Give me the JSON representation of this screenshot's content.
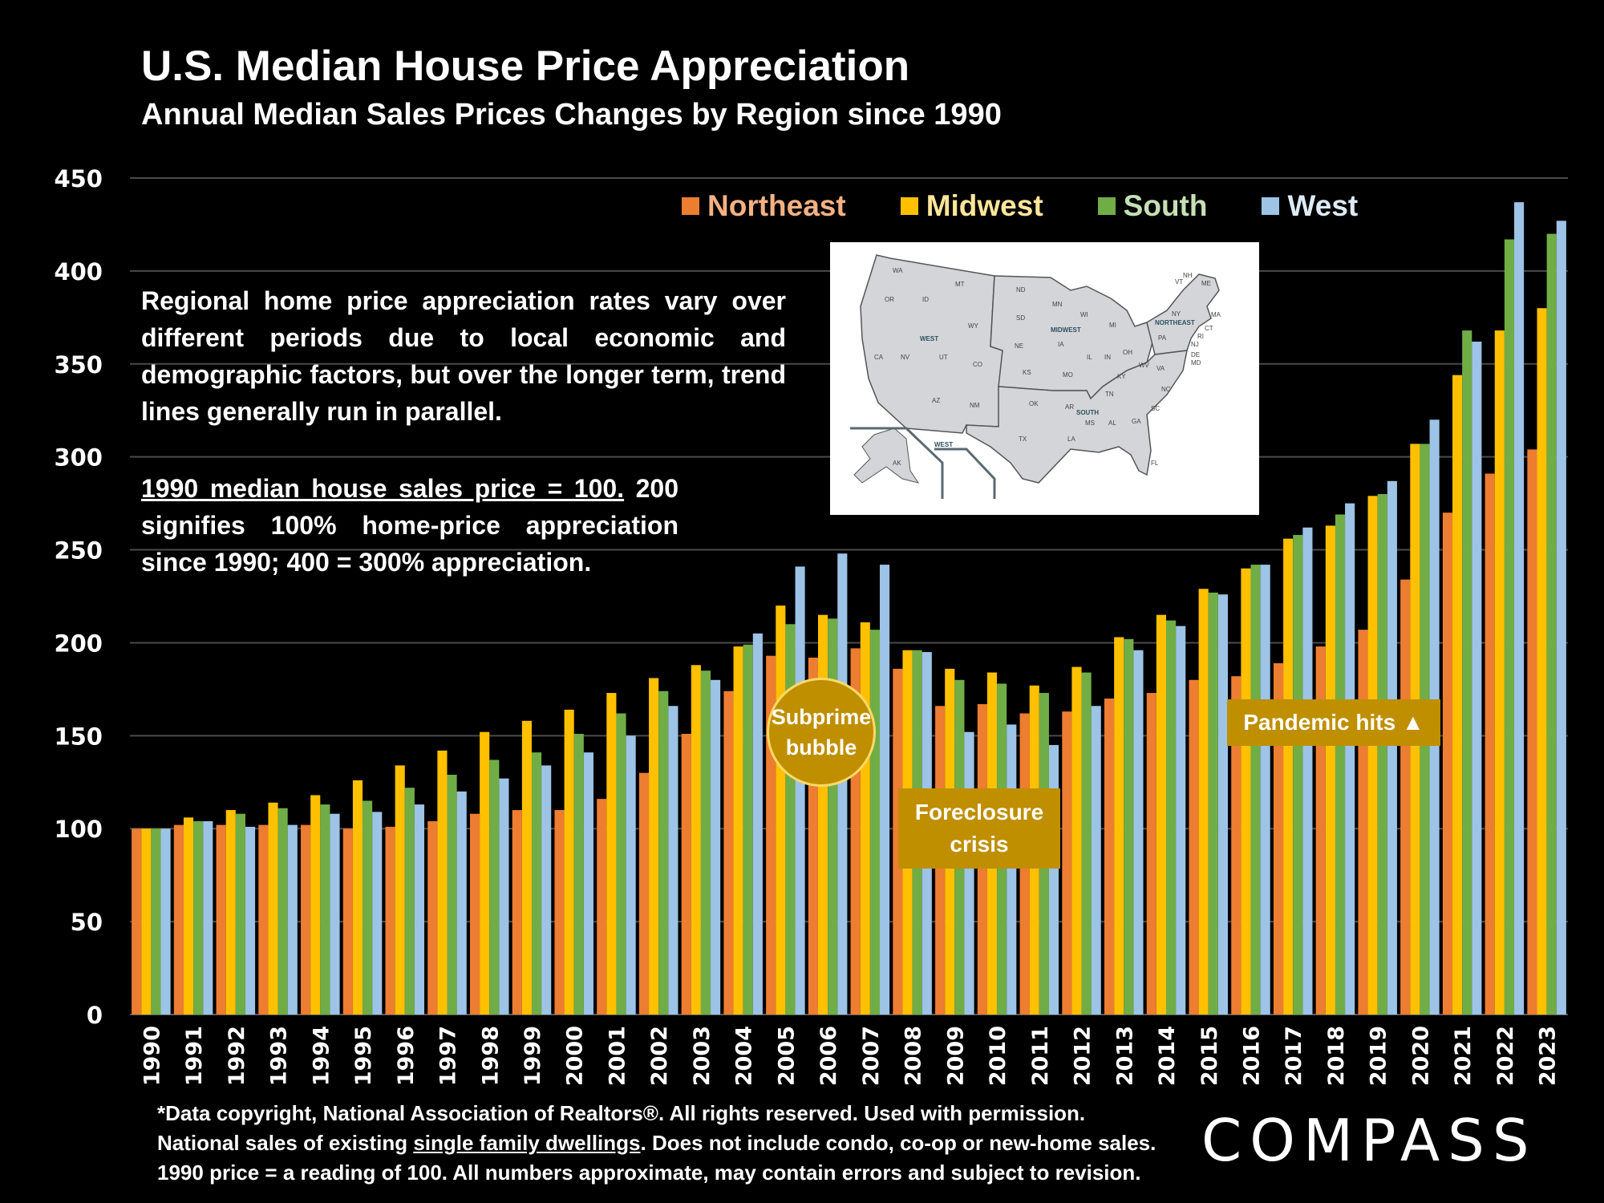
{
  "header": {
    "title": "U.S. Median House Price Appreciation",
    "subtitle": "Annual Median Sales Prices Changes by Region since 1990"
  },
  "notes": {
    "paragraph1": "Regional home price appreciation rates vary over different periods due to local economic and demographic factors, but over the longer term, trend lines generally run in parallel.",
    "paragraph2_underlined": "1990 median house sales price = 100.",
    "paragraph2_rest": " 200 signifies 100% home-price appreciation since 1990; 400 = 300% appreciation."
  },
  "annotations": {
    "subprime": "Subprime bubble",
    "foreclosure": "Foreclosure crisis",
    "pandemic": "Pandemic hits ▲"
  },
  "map": {
    "region_labels": [
      "WEST",
      "MIDWEST",
      "NORTHEAST",
      "SOUTH",
      "WEST"
    ],
    "state_labels": [
      "WA",
      "OR",
      "ID",
      "MT",
      "WY",
      "CA",
      "NV",
      "UT",
      "CO",
      "AZ",
      "NM",
      "ND",
      "SD",
      "NE",
      "KS",
      "MN",
      "IA",
      "MO",
      "WI",
      "IL",
      "IN",
      "MI",
      "OH",
      "OK",
      "TX",
      "AR",
      "LA",
      "MS",
      "AL",
      "TN",
      "KY",
      "WV",
      "VA",
      "NC",
      "SC",
      "GA",
      "FL",
      "PA",
      "NY",
      "ME",
      "NH",
      "VT",
      "MA",
      "CT",
      "RI",
      "NJ",
      "DE",
      "MD",
      "AK",
      "HI"
    ]
  },
  "footer": {
    "line1": "*Data copyright, National Association of Realtors®. All rights reserved. Used with permission.",
    "line2_pre": "National sales of existing ",
    "line2_underlined": "single family dwellings",
    "line2_post": ". Does not include condo, co-op or new-home sales.",
    "line3": "1990 price = a reading of 100. All numbers approximate, may contain errors and subject to revision."
  },
  "logo": "COMPASS",
  "colors": {
    "Northeast": "#ed7d31",
    "Midwest": "#ffc000",
    "South": "#70ad47",
    "West": "#9dc3e6",
    "annotation": "#bf8f00",
    "legend_text_Northeast": "#f4b183",
    "legend_text_Midwest": "#ffe699",
    "legend_text_South": "#c5e0b4",
    "legend_text_West": "#deebf7"
  },
  "chart_data": {
    "type": "bar",
    "title": "U.S. Median House Price Appreciation",
    "subtitle": "Annual Median Sales Prices Changes by Region since 1990",
    "xlabel": "",
    "ylabel": "",
    "ylim": [
      0,
      450
    ],
    "yticks": [
      0,
      50,
      100,
      150,
      200,
      250,
      300,
      350,
      400,
      450
    ],
    "grid": true,
    "legend_position": "top-right",
    "categories": [
      "1990",
      "1991",
      "1992",
      "1993",
      "1994",
      "1995",
      "1996",
      "1997",
      "1998",
      "1999",
      "2000",
      "2001",
      "2002",
      "2003",
      "2004",
      "2005",
      "2006",
      "2007",
      "2008",
      "2009",
      "2010",
      "2011",
      "2012",
      "2013",
      "2014",
      "2015",
      "2016",
      "2017",
      "2018",
      "2019",
      "2020",
      "2021",
      "2022",
      "2023"
    ],
    "series": [
      {
        "name": "Northeast",
        "values": [
          100,
          102,
          102,
          102,
          102,
          100,
          101,
          104,
          108,
          110,
          110,
          116,
          130,
          151,
          174,
          193,
          192,
          197,
          186,
          166,
          167,
          162,
          163,
          170,
          173,
          180,
          182,
          189,
          198,
          207,
          234,
          270,
          291,
          304
        ]
      },
      {
        "name": "Midwest",
        "values": [
          100,
          106,
          110,
          114,
          118,
          126,
          134,
          142,
          152,
          158,
          164,
          173,
          181,
          188,
          198,
          220,
          215,
          211,
          196,
          186,
          184,
          177,
          187,
          203,
          215,
          229,
          240,
          256,
          263,
          279,
          307,
          344,
          368,
          380
        ]
      },
      {
        "name": "South",
        "values": [
          100,
          104,
          108,
          111,
          113,
          115,
          122,
          129,
          137,
          141,
          151,
          162,
          174,
          185,
          199,
          210,
          213,
          207,
          196,
          180,
          178,
          173,
          184,
          202,
          212,
          227,
          242,
          258,
          269,
          280,
          307,
          368,
          417,
          420
        ]
      },
      {
        "name": "West",
        "values": [
          100,
          104,
          101,
          102,
          108,
          109,
          113,
          120,
          127,
          134,
          141,
          150,
          166,
          180,
          205,
          241,
          248,
          242,
          195,
          152,
          156,
          145,
          166,
          196,
          209,
          226,
          242,
          262,
          275,
          287,
          320,
          362,
          437,
          427
        ]
      }
    ]
  }
}
